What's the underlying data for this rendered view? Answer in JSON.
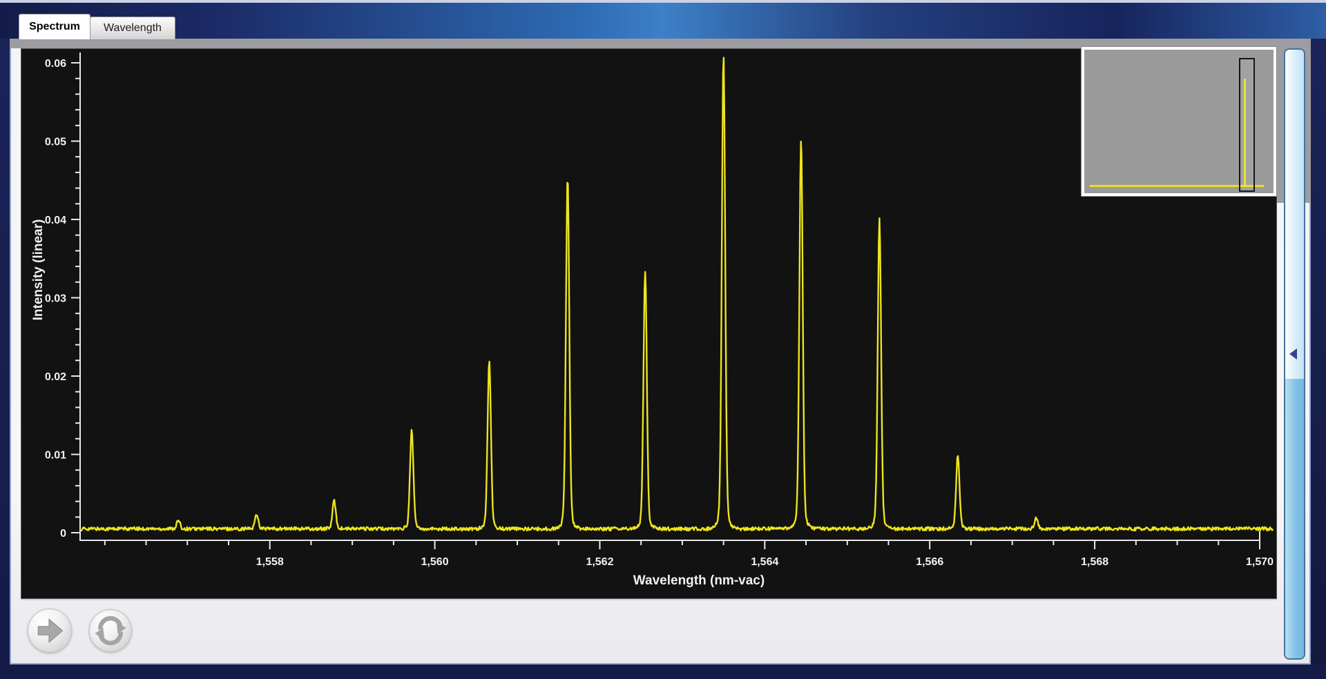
{
  "tabs": {
    "spectrum": "Spectrum",
    "wavelength": "Wavelength"
  },
  "chart_data": {
    "type": "line",
    "title": "",
    "xlabel": "Wavelength (nm-vac)",
    "ylabel": "Intensity (linear)",
    "x_range": [
      1555.7,
      1570.0
    ],
    "trace_x_end": 1570.16,
    "y_range": [
      0,
      0.0615
    ],
    "x_major_ticks": [
      {
        "v": 1558,
        "label": "1,558"
      },
      {
        "v": 1560,
        "label": "1,560"
      },
      {
        "v": 1562,
        "label": "1,562"
      },
      {
        "v": 1564,
        "label": "1,564"
      },
      {
        "v": 1566,
        "label": "1,566"
      },
      {
        "v": 1568,
        "label": "1,568"
      },
      {
        "v": 1570,
        "label": "1,570"
      }
    ],
    "x_minor_step": 0.5,
    "y_major_ticks": [
      {
        "v": 0,
        "label": "0"
      },
      {
        "v": 0.01,
        "label": "0.01"
      },
      {
        "v": 0.02,
        "label": "0.02"
      },
      {
        "v": 0.03,
        "label": "0.03"
      },
      {
        "v": 0.04,
        "label": "0.04"
      },
      {
        "v": 0.05,
        "label": "0.05"
      },
      {
        "v": 0.06,
        "label": "0.06"
      }
    ],
    "y_minor_step": 0.002,
    "grid": false,
    "legend": "none",
    "background": "#121212",
    "axis_color": "#ebebeb",
    "text_color": "#f2f2f2",
    "series": [
      {
        "name": "optical-spectrum-trace",
        "color": "#ece41f",
        "noise_floor": 0.0005,
        "peak_sigma_nm": 0.02,
        "peaks": [
          [
            1556.89,
            0.001
          ],
          [
            1557.84,
            0.0018
          ],
          [
            1558.78,
            0.0034
          ],
          [
            1559.72,
            0.0122
          ],
          [
            1560.66,
            0.0208
          ],
          [
            1561.61,
            0.0432
          ],
          [
            1562.55,
            0.0316
          ],
          [
            1563.5,
            0.0582
          ],
          [
            1564.44,
            0.0479
          ],
          [
            1565.39,
            0.0381
          ],
          [
            1566.34,
            0.009
          ],
          [
            1567.29,
            0.0013
          ]
        ]
      }
    ]
  },
  "minimap": {
    "bg_color": "#9b9b9b",
    "trace_color": "#e8df20",
    "selection_border_color": "#141414"
  },
  "scrollbar": {
    "arrow_icon": "triangle-left",
    "track_color": "#d8edf9",
    "fill_color": "#7fc0e4"
  },
  "buttons": {
    "advance_icon": "right-arrow-icon",
    "refresh_icon": "refresh-icon"
  },
  "colors": {
    "window_border": "#141b47",
    "band_highlight": "#3d80c7",
    "content_bg": "#f4f4f6",
    "gray_strip": "#9c9ca1",
    "plot_bg": "#121212",
    "trace": "#ece41f"
  }
}
